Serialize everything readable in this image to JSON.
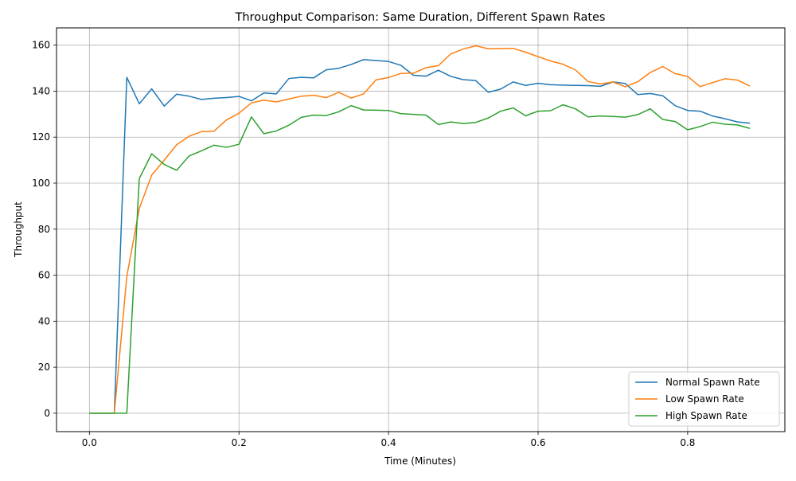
{
  "chart_data": {
    "type": "line",
    "title": "Throughput Comparison: Same Duration, Different Spawn Rates",
    "xlabel": "Time (Minutes)",
    "ylabel": "Throughput",
    "xlim": [
      -0.044,
      0.93
    ],
    "ylim": [
      -8,
      167.5
    ],
    "xticks": [
      0.0,
      0.2,
      0.4,
      0.6,
      0.8
    ],
    "xtick_labels": [
      "0.0",
      "0.2",
      "0.4",
      "0.6",
      "0.8"
    ],
    "yticks": [
      0,
      20,
      40,
      60,
      80,
      100,
      120,
      140,
      160
    ],
    "ytick_labels": [
      "0",
      "20",
      "40",
      "60",
      "80",
      "100",
      "120",
      "140",
      "160"
    ],
    "grid": true,
    "legend_position": "lower-right",
    "series": [
      {
        "name": "Normal Spawn Rate",
        "color": "#1f77b4",
        "x": [
          0,
          0.0167,
          0.0333,
          0.05,
          0.0667,
          0.0833,
          0.1,
          0.1167,
          0.1333,
          0.15,
          0.1667,
          0.1833,
          0.2,
          0.2167,
          0.2333,
          0.25,
          0.2667,
          0.2833,
          0.3,
          0.3167,
          0.3333,
          0.35,
          0.3667,
          0.3833,
          0.4,
          0.4167,
          0.4333,
          0.45,
          0.4667,
          0.4833,
          0.5,
          0.5167,
          0.5333,
          0.55,
          0.5667,
          0.5833,
          0.6,
          0.6167,
          0.6333,
          0.65,
          0.6667,
          0.6833,
          0.7,
          0.7167,
          0.7333,
          0.75,
          0.7667,
          0.7833,
          0.8,
          0.8167,
          0.8333,
          0.85,
          0.8667,
          0.8833
        ],
        "values": [
          0,
          0,
          0,
          146,
          134.5,
          141,
          133.5,
          138.7,
          137.8,
          136.4,
          136.9,
          137.2,
          137.7,
          135.8,
          139.2,
          138.8,
          145.5,
          146,
          145.8,
          149.3,
          149.9,
          151.6,
          153.7,
          153.3,
          152.9,
          151.2,
          146.9,
          146.5,
          149.1,
          146.4,
          145,
          144.6,
          139.5,
          140.9,
          144,
          142.5,
          143.4,
          142.8,
          142.6,
          142.5,
          142.4,
          142.1,
          144,
          143.3,
          138.5,
          139,
          138,
          133.7,
          131.6,
          131.3,
          129.2,
          128,
          126.6,
          126.1
        ]
      },
      {
        "name": "Low Spawn Rate",
        "color": "#ff7f0e",
        "x": [
          0,
          0.0167,
          0.0333,
          0.05,
          0.0667,
          0.0833,
          0.1,
          0.1167,
          0.1333,
          0.15,
          0.1667,
          0.1833,
          0.2,
          0.2167,
          0.2333,
          0.25,
          0.2667,
          0.2833,
          0.3,
          0.3167,
          0.3333,
          0.35,
          0.3667,
          0.3833,
          0.4,
          0.4167,
          0.4333,
          0.45,
          0.4667,
          0.4833,
          0.5,
          0.5167,
          0.5333,
          0.55,
          0.5667,
          0.5833,
          0.6,
          0.6167,
          0.6333,
          0.65,
          0.6667,
          0.6833,
          0.7,
          0.7167,
          0.7333,
          0.75,
          0.7667,
          0.7833,
          0.8,
          0.8167,
          0.8333,
          0.85,
          0.8667,
          0.8833
        ],
        "values": [
          0,
          0,
          0,
          59.5,
          89,
          103.5,
          110,
          116.7,
          120.4,
          122.4,
          122.6,
          127.5,
          130.4,
          134.9,
          136.1,
          135.3,
          136.6,
          137.8,
          138.2,
          137.2,
          139.5,
          137,
          138.8,
          144.9,
          145.9,
          147.7,
          147.8,
          150.2,
          151.1,
          156.2,
          158.3,
          159.7,
          158.4,
          158.5,
          158.6,
          156.9,
          155,
          153.1,
          151.7,
          149.2,
          144.2,
          143.1,
          144,
          141.9,
          144.1,
          148.1,
          150.7,
          147.6,
          146.4,
          142,
          143.7,
          145.4,
          144.8,
          142.2
        ]
      },
      {
        "name": "High Spawn Rate",
        "color": "#2ca02c",
        "x": [
          0,
          0.0167,
          0.0333,
          0.05,
          0.0667,
          0.0833,
          0.1,
          0.1167,
          0.1333,
          0.15,
          0.1667,
          0.1833,
          0.2,
          0.2167,
          0.2333,
          0.25,
          0.2667,
          0.2833,
          0.3,
          0.3167,
          0.3333,
          0.35,
          0.3667,
          0.3833,
          0.4,
          0.4167,
          0.4333,
          0.45,
          0.4667,
          0.4833,
          0.5,
          0.5167,
          0.5333,
          0.55,
          0.5667,
          0.5833,
          0.6,
          0.6167,
          0.6333,
          0.65,
          0.6667,
          0.6833,
          0.7,
          0.7167,
          0.7333,
          0.75,
          0.7667,
          0.7833,
          0.8,
          0.8167,
          0.8333,
          0.85,
          0.8667,
          0.8833
        ],
        "values": [
          0,
          0,
          0,
          0,
          102,
          112.8,
          108.1,
          105.6,
          111.8,
          114.1,
          116.5,
          115.6,
          116.9,
          128.8,
          121.5,
          122.7,
          125.2,
          128.6,
          129.6,
          129.4,
          131,
          133.7,
          131.8,
          131.7,
          131.6,
          130.2,
          129.9,
          129.6,
          125.5,
          126.6,
          125.9,
          126.4,
          128.3,
          131.3,
          132.7,
          129.3,
          131.3,
          131.5,
          134.1,
          132.3,
          128.8,
          129.2,
          129,
          128.7,
          129.8,
          132.3,
          127.7,
          126.8,
          123.2,
          124.6,
          126.5,
          125.6,
          125.3,
          123.8
        ]
      }
    ]
  }
}
